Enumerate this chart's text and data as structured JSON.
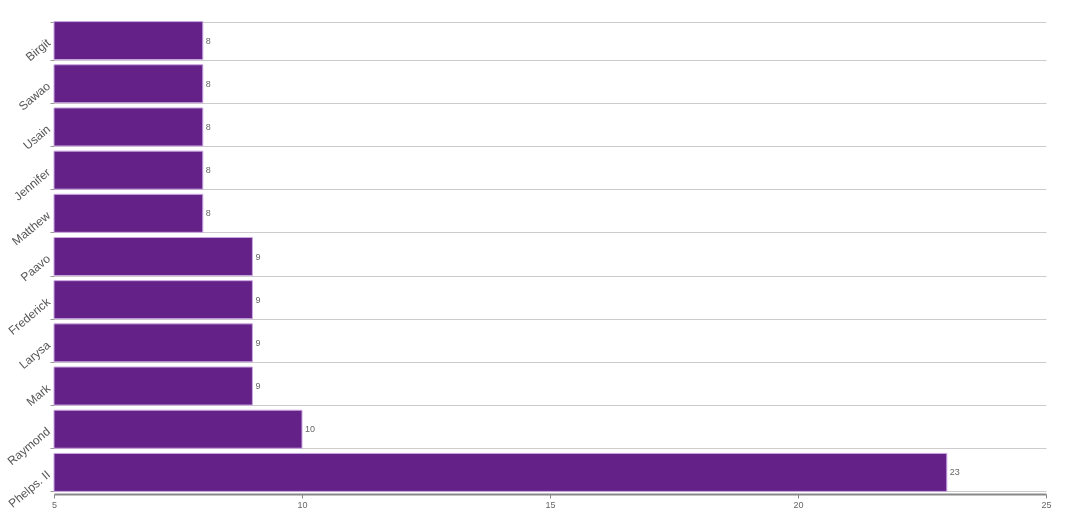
{
  "chart_data": {
    "type": "bar",
    "orientation": "horizontal",
    "categories": [
      "Birgit",
      "Sawao",
      "Usain",
      "Jennifer",
      "Matthew",
      "Paavo",
      "Frederick",
      "Larysa",
      "Mark",
      "Raymond",
      "Phelps. II"
    ],
    "values": [
      8,
      8,
      8,
      8,
      8,
      9,
      9,
      9,
      9,
      10,
      23
    ],
    "color": "#642187",
    "xlim": [
      5,
      25
    ],
    "xticks": [
      5,
      10,
      15,
      20,
      25
    ],
    "grid": "y",
    "data_labels": true
  }
}
